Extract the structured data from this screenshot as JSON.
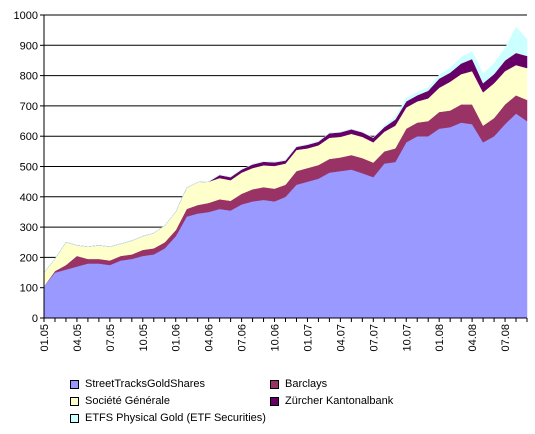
{
  "chart_data": {
    "type": "area",
    "stacked": true,
    "title": "",
    "xlabel": "",
    "ylabel": "",
    "ylim": [
      0,
      1000
    ],
    "yticks": [
      0,
      100,
      200,
      300,
      400,
      500,
      600,
      700,
      800,
      900,
      1000
    ],
    "grid": "horizontal",
    "legend_position": "bottom",
    "x": [
      "01.05",
      "02.05",
      "03.05",
      "04.05",
      "05.05",
      "06.05",
      "07.05",
      "08.05",
      "09.05",
      "10.05",
      "11.05",
      "12.05",
      "01.06",
      "02.06",
      "03.06",
      "04.06",
      "05.06",
      "06.06",
      "07.06",
      "08.06",
      "09.06",
      "10.06",
      "11.06",
      "12.06",
      "01.07",
      "02.07",
      "03.07",
      "04.07",
      "05.07",
      "06.07",
      "07.07",
      "08.07",
      "09.07",
      "10.07",
      "11.07",
      "12.07",
      "01.08",
      "02.08",
      "03.08",
      "04.08",
      "05.08",
      "06.08",
      "07.08",
      "08.08",
      "09.08"
    ],
    "x_tick_labels": [
      "01.05",
      "04.05",
      "07.05",
      "10.05",
      "01.06",
      "04.06",
      "07.06",
      "10.06",
      "01.07",
      "04.07",
      "07.07",
      "10.07",
      "01.08",
      "04.08",
      "07.08"
    ],
    "series": [
      {
        "name": "StreetTracksGoldShares",
        "color": "#9999ff",
        "values": [
          105,
          150,
          160,
          170,
          180,
          180,
          175,
          190,
          195,
          205,
          210,
          230,
          270,
          335,
          345,
          350,
          360,
          355,
          375,
          385,
          390,
          385,
          400,
          440,
          450,
          460,
          480,
          485,
          490,
          478,
          465,
          510,
          515,
          580,
          600,
          600,
          625,
          630,
          645,
          640,
          580,
          600,
          640,
          675,
          650
        ]
      },
      {
        "name": "Barclays",
        "color": "#993366",
        "values": [
          0,
          5,
          15,
          35,
          15,
          15,
          15,
          15,
          15,
          20,
          20,
          20,
          20,
          25,
          28,
          30,
          32,
          32,
          35,
          40,
          42,
          42,
          40,
          45,
          45,
          45,
          45,
          45,
          48,
          50,
          48,
          40,
          45,
          45,
          45,
          50,
          55,
          55,
          60,
          65,
          55,
          60,
          65,
          60,
          70
        ]
      },
      {
        "name": "Société Générale",
        "color": "#ffffcc",
        "values": [
          45,
          40,
          75,
          35,
          40,
          45,
          45,
          40,
          45,
          45,
          50,
          55,
          60,
          70,
          75,
          70,
          70,
          68,
          70,
          70,
          72,
          75,
          70,
          70,
          65,
          65,
          70,
          68,
          70,
          70,
          67,
          65,
          75,
          70,
          70,
          75,
          80,
          95,
          100,
          110,
          110,
          115,
          110,
          100,
          105
        ]
      },
      {
        "name": "Zürcher Kantonalbank",
        "color": "#660066",
        "values": [
          0,
          0,
          0,
          0,
          0,
          0,
          0,
          0,
          0,
          0,
          0,
          0,
          0,
          0,
          0,
          0,
          10,
          10,
          10,
          12,
          12,
          12,
          10,
          10,
          12,
          12,
          15,
          15,
          15,
          15,
          15,
          15,
          20,
          20,
          20,
          25,
          30,
          30,
          35,
          40,
          30,
          30,
          35,
          40,
          40
        ]
      },
      {
        "name": "ETFS Physical Gold (ETF Securities)",
        "color": "#ccffff",
        "values": [
          0,
          0,
          0,
          0,
          0,
          0,
          0,
          0,
          0,
          0,
          0,
          0,
          0,
          0,
          0,
          0,
          0,
          0,
          0,
          0,
          0,
          0,
          0,
          0,
          0,
          0,
          0,
          0,
          0,
          0,
          0,
          5,
          8,
          10,
          10,
          10,
          12,
          15,
          20,
          25,
          30,
          35,
          40,
          85,
          55
        ]
      }
    ]
  }
}
